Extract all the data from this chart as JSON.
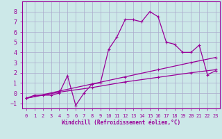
{
  "xlabel": "Windchill (Refroidissement éolien,°C)",
  "bg_color": "#cce8e8",
  "grid_color": "#aaaacc",
  "line_color": "#990099",
  "xlim": [
    -0.5,
    23.5
  ],
  "ylim": [
    -1.5,
    9.0
  ],
  "xticks": [
    0,
    1,
    2,
    3,
    4,
    5,
    6,
    7,
    8,
    9,
    10,
    11,
    12,
    13,
    14,
    15,
    16,
    17,
    18,
    19,
    20,
    21,
    22,
    23
  ],
  "yticks": [
    -1,
    0,
    1,
    2,
    3,
    4,
    5,
    6,
    7,
    8
  ],
  "series1": [
    [
      0,
      -0.5
    ],
    [
      1,
      -0.2
    ],
    [
      2,
      -0.2
    ],
    [
      3,
      -0.2
    ],
    [
      4,
      0.0
    ],
    [
      5,
      1.7
    ],
    [
      6,
      -1.2
    ],
    [
      7,
      0.0
    ],
    [
      8,
      0.9
    ],
    [
      9,
      1.0
    ],
    [
      10,
      4.3
    ],
    [
      11,
      5.5
    ],
    [
      12,
      7.2
    ],
    [
      13,
      7.2
    ],
    [
      14,
      7.0
    ],
    [
      15,
      8.0
    ],
    [
      16,
      7.5
    ],
    [
      17,
      5.0
    ],
    [
      18,
      4.8
    ],
    [
      19,
      4.0
    ],
    [
      20,
      4.0
    ],
    [
      21,
      4.7
    ],
    [
      22,
      1.8
    ],
    [
      23,
      2.2
    ]
  ],
  "series2": [
    [
      0,
      -0.5
    ],
    [
      4,
      0.1
    ],
    [
      8,
      0.55
    ],
    [
      12,
      1.1
    ],
    [
      16,
      1.55
    ],
    [
      20,
      2.0
    ],
    [
      23,
      2.3
    ]
  ],
  "series3": [
    [
      0,
      -0.5
    ],
    [
      4,
      0.2
    ],
    [
      8,
      0.9
    ],
    [
      12,
      1.6
    ],
    [
      16,
      2.3
    ],
    [
      20,
      3.0
    ],
    [
      23,
      3.5
    ]
  ],
  "marker_size": 3,
  "line_width": 0.9
}
